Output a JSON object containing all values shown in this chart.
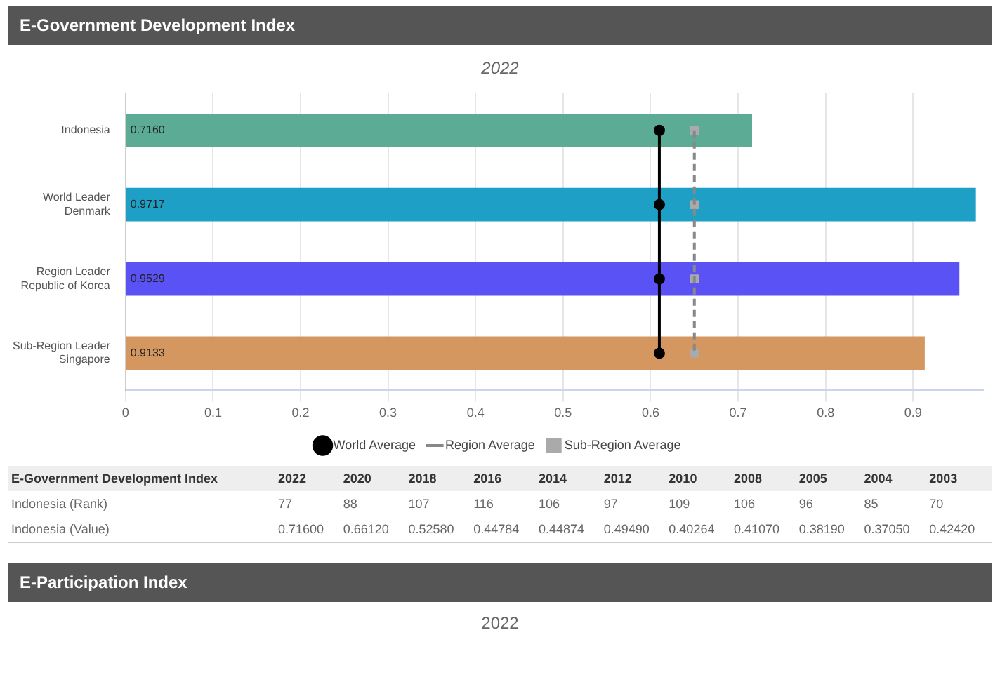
{
  "chart_data": [
    {
      "type": "bar",
      "orientation": "horizontal",
      "title": "E-Government Development Index",
      "subtitle": "2022",
      "categories": [
        "Indonesia",
        "World Leader\nDenmark",
        "Region Leader\nRepublic of Korea",
        "Sub-Region Leader\nSingapore"
      ],
      "values": [
        0.716,
        0.9717,
        0.9529,
        0.9133
      ],
      "colors": [
        "#5bab95",
        "#1d9fc6",
        "#5a52f5",
        "#d4975f"
      ],
      "value_labels": [
        "0.7160",
        "0.9717",
        "0.9529",
        "0.9133"
      ],
      "series": [
        {
          "name": "World Average",
          "type": "line",
          "color": "#000000",
          "values": [
            0.61,
            0.61,
            0.61,
            0.61
          ],
          "marker": "circle",
          "line_style": "solid"
        },
        {
          "name": "Region Average",
          "type": "line",
          "color": "#888888",
          "values": [
            0.65,
            0.65,
            0.65,
            0.65
          ],
          "marker": "none",
          "line_style": "dashed"
        },
        {
          "name": "Sub-Region Average",
          "type": "scatter",
          "color": "#aaaaaa",
          "values": [
            0.65,
            0.65,
            0.65,
            0.65
          ],
          "marker": "square"
        }
      ],
      "xlim": [
        0,
        0.98
      ],
      "xticks": [
        0,
        0.1,
        0.2,
        0.3,
        0.4,
        0.5,
        0.6,
        0.7,
        0.8,
        0.9
      ],
      "grid": "x",
      "legend": "bottom",
      "annotations": [
        "E-Government Development Index",
        "2022",
        "2020",
        "2018",
        "2016",
        "2014",
        "2012",
        "2010",
        "2008",
        "2005",
        "2004",
        "2003",
        "Indonesia (Rank)",
        "77",
        "88",
        "107",
        "116",
        "106",
        "97",
        "109",
        "106",
        "96",
        "85",
        "70",
        "Indonesia (Value)",
        "0.71600",
        "0.66120",
        "0.52580",
        "0.44784",
        "0.44874",
        "0.49490",
        "0.40264",
        "0.41070",
        "0.38190",
        "0.37050",
        "0.42420"
      ]
    },
    {
      "type": "other",
      "title": "E-Participation Index",
      "subtitle": "2022"
    }
  ]
}
